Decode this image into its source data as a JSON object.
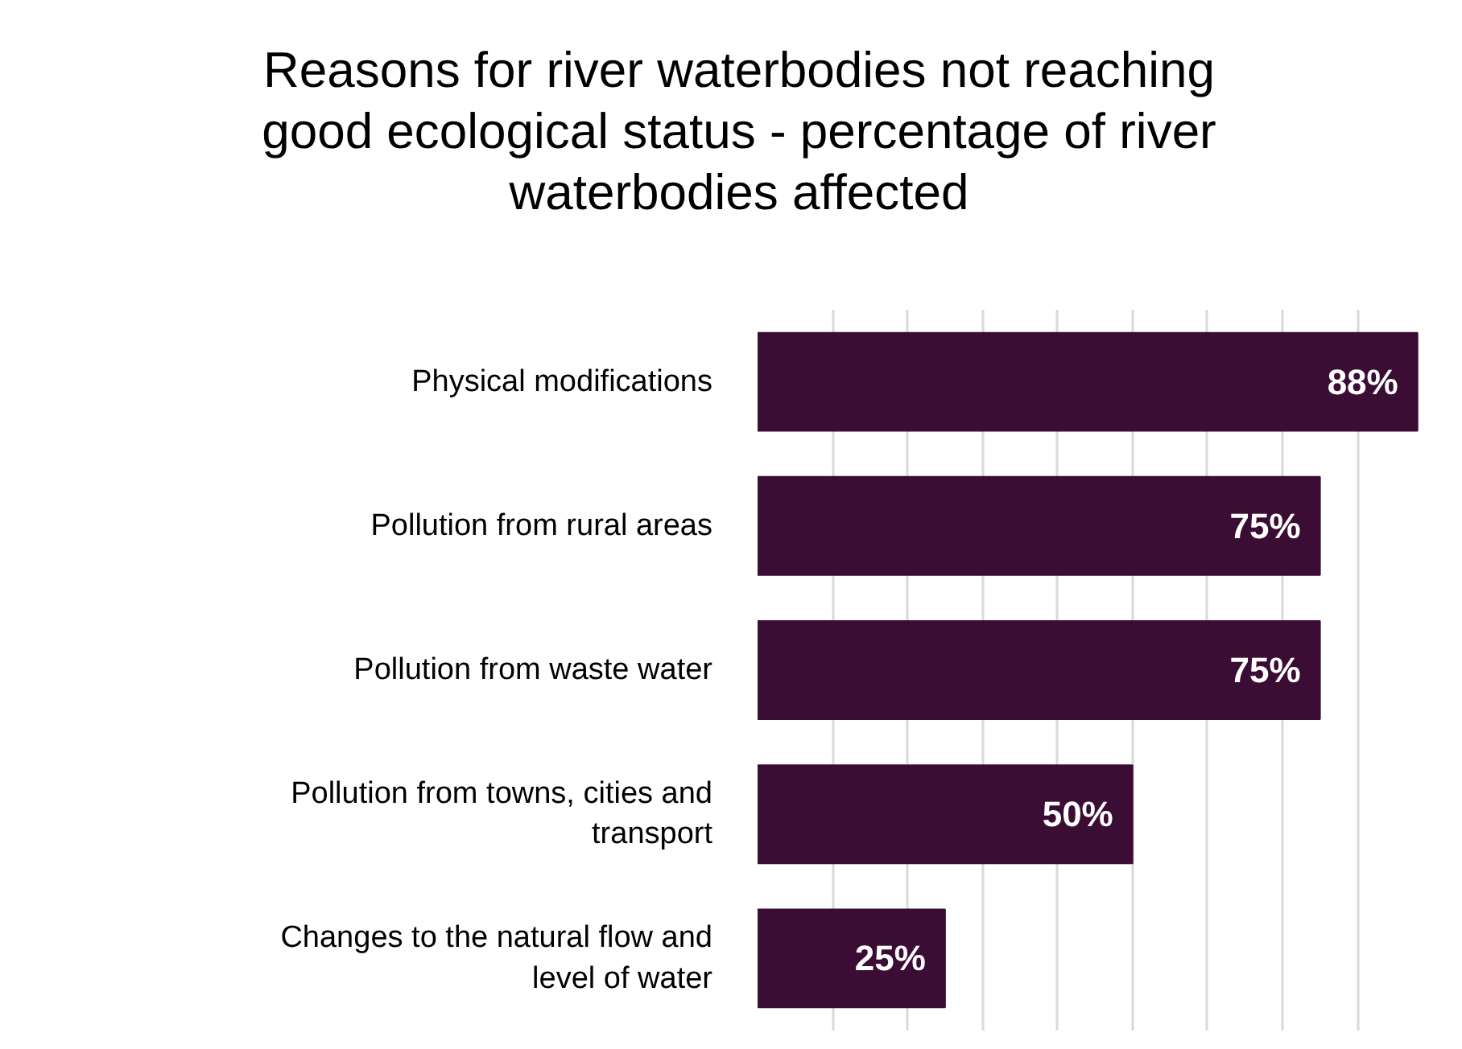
{
  "chart_data": {
    "type": "bar",
    "orientation": "horizontal",
    "title": "Reasons for river waterbodies not reaching good ecological status - percentage of river waterbodies affected",
    "categories": [
      "Physical modifications",
      "Pollution from rural areas",
      "Pollution from waste water",
      "Pollution from towns, cities and transport",
      "Changes to the natural flow and level of water"
    ],
    "values": [
      88,
      75,
      75,
      50,
      25
    ],
    "value_labels": [
      "88%",
      "75%",
      "75%",
      "50%",
      "25%"
    ],
    "color": "#3b0d35",
    "grid": "x",
    "tick_labels": "y"
  }
}
